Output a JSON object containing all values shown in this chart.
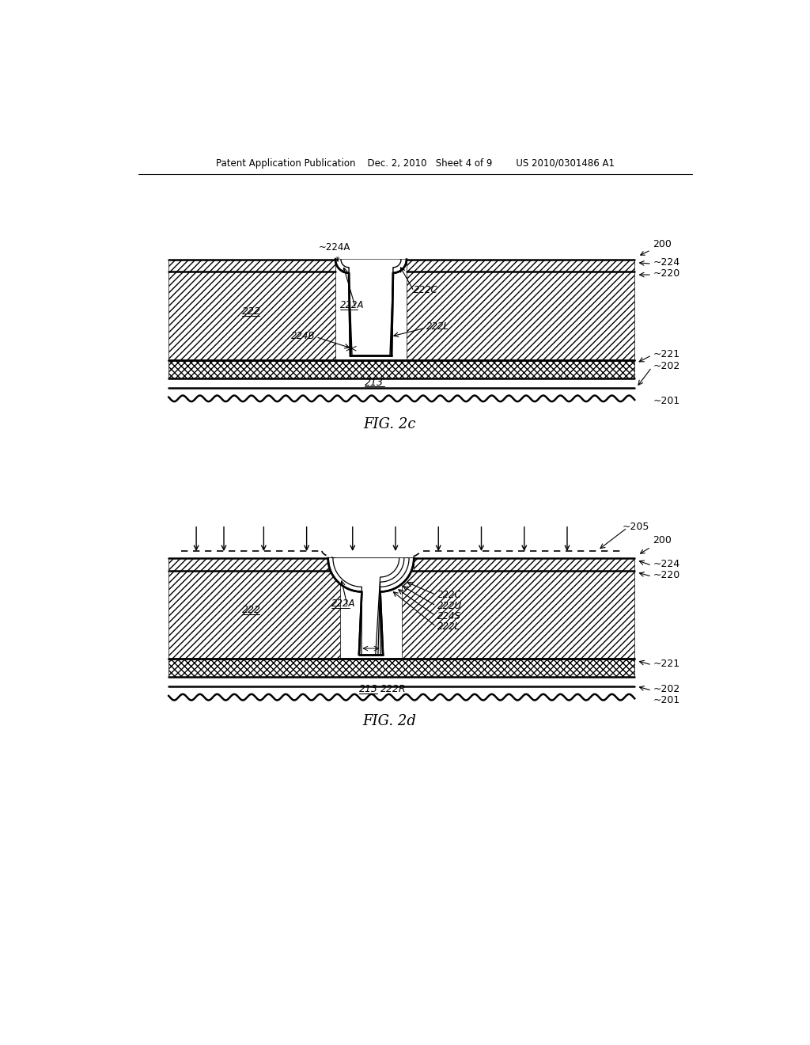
{
  "bg_color": "#ffffff",
  "line_color": "#000000",
  "header_text": "Patent Application Publication    Dec. 2, 2010   Sheet 4 of 9        US 2010/0301486 A1",
  "fig2c_label": "FIG. 2c",
  "fig2d_label": "FIG. 2d"
}
